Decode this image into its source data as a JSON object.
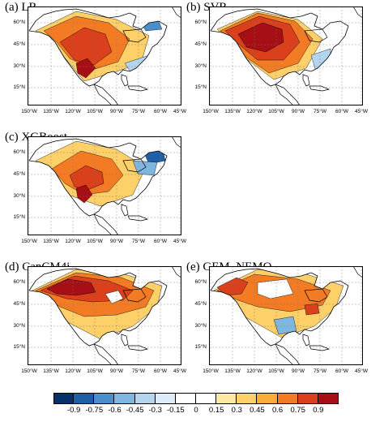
{
  "panels": [
    {
      "id": "lr",
      "title": "(a) LR"
    },
    {
      "id": "svr",
      "title": "(b) SVR"
    },
    {
      "id": "xgb",
      "title": "(c) XGBoost"
    },
    {
      "id": "can",
      "title": "(d) CanCM4i"
    },
    {
      "id": "gem",
      "title": "(e) GEM_NEMO"
    }
  ],
  "lat_labels": [
    "60°N",
    "45°N",
    "30°N",
    "15°N"
  ],
  "lon_labels": [
    "150°W",
    "135°W",
    "120°W",
    "105°W",
    "90°W",
    "75°W",
    "60°W",
    "45°W"
  ],
  "colorbar": {
    "tick_labels": [
      "-0.9",
      "-0.75",
      "-0.6",
      "-0.45",
      "-0.3",
      "-0.15",
      "0",
      "0.15",
      "0.3",
      "0.45",
      "0.6",
      "0.75",
      "0.9"
    ],
    "colors": [
      "#08306b",
      "#1f5fa8",
      "#4a8fcc",
      "#7fb6e0",
      "#b3d5ee",
      "#dcecf8",
      "#ffffff",
      "#ffffff",
      "#fee9a3",
      "#fdd06a",
      "#fcac3c",
      "#f37b24",
      "#d9401b",
      "#a50f15"
    ]
  }
}
